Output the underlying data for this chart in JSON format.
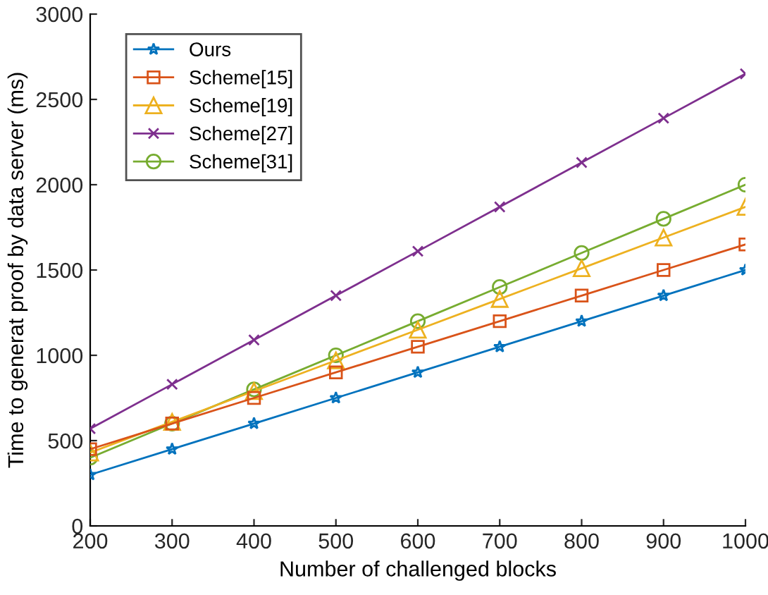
{
  "chart_data": {
    "type": "line",
    "xlabel": "Number of challenged blocks",
    "ylabel": "Time to generat proof by data server (ms)",
    "x": [
      200,
      300,
      400,
      500,
      600,
      700,
      800,
      900,
      1000
    ],
    "series": [
      {
        "name": "Ours",
        "color": "#0072bd",
        "marker": "star",
        "values": [
          300,
          450,
          600,
          750,
          900,
          1050,
          1200,
          1350,
          1500
        ]
      },
      {
        "name": "Scheme[15]",
        "color": "#d95319",
        "marker": "square",
        "values": [
          450,
          600,
          750,
          900,
          1050,
          1200,
          1350,
          1500,
          1650
        ]
      },
      {
        "name": "Scheme[19]",
        "color": "#edb120",
        "marker": "triangle",
        "values": [
          430,
          610,
          790,
          970,
          1150,
          1330,
          1510,
          1690,
          1870
        ]
      },
      {
        "name": "Scheme[27]",
        "color": "#7e2f8e",
        "marker": "cross",
        "values": [
          570,
          830,
          1090,
          1350,
          1610,
          1870,
          2130,
          2390,
          2650
        ]
      },
      {
        "name": "Scheme[31]",
        "color": "#77ac30",
        "marker": "circle",
        "values": [
          400,
          600,
          800,
          1000,
          1200,
          1400,
          1600,
          1800,
          2000
        ]
      }
    ],
    "xlim": [
      200,
      1000
    ],
    "xticks": [
      200,
      300,
      400,
      500,
      600,
      700,
      800,
      900,
      1000
    ],
    "ylim": [
      0,
      3000
    ],
    "yticks": [
      0,
      500,
      1000,
      1500,
      2000,
      2500,
      3000
    ],
    "legend": "top left",
    "grid": false,
    "line_style": "solid"
  }
}
